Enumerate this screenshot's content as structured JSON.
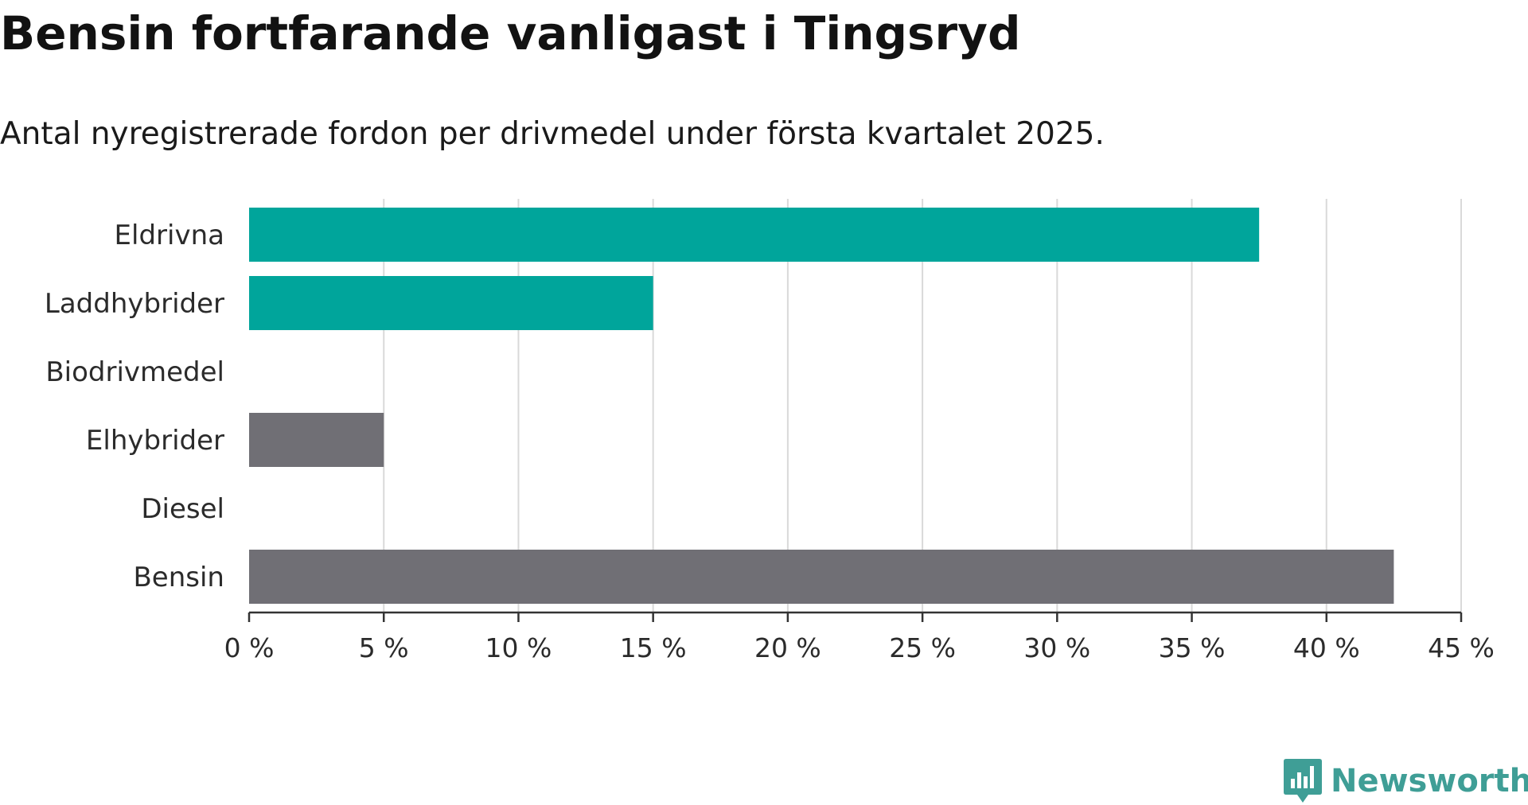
{
  "chart_data": {
    "type": "bar",
    "orientation": "horizontal",
    "title": "Bensin fortfarande vanligast i Tingsryd",
    "subtitle": "Antal nyregistrerade fordon per drivmedel under första kvartalet 2025.",
    "categories": [
      "Eldrivna",
      "Laddhybrider",
      "Biodrivmedel",
      "Elhybrider",
      "Diesel",
      "Bensin"
    ],
    "values": [
      37.5,
      15,
      0,
      5,
      0,
      42.5
    ],
    "bar_colors": [
      "#00a59b",
      "#00a59b",
      "#00a59b",
      "#706f75",
      "#706f75",
      "#706f75"
    ],
    "xlim": [
      0,
      45
    ],
    "xticks": [
      0,
      5,
      10,
      15,
      20,
      25,
      30,
      35,
      40,
      45
    ],
    "xtick_labels": [
      "0 %",
      "5 %",
      "10 %",
      "15 %",
      "20 %",
      "25 %",
      "30 %",
      "35 %",
      "40 %",
      "45 %"
    ],
    "xlabel": "",
    "ylabel": "",
    "grid": true,
    "gridline_color": "#d9d9d9",
    "axis_color": "#333333"
  },
  "branding": {
    "name": "Newsworthy",
    "color": "#3f9e96",
    "icon": "newsworthy-logo-icon"
  }
}
